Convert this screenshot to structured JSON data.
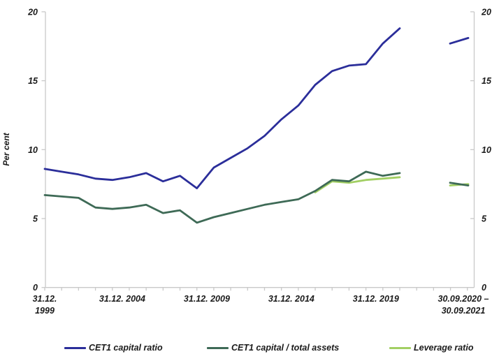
{
  "figure": {
    "ylabel": "Per cent",
    "background": "#ffffff",
    "axis_color": "#c9c9c9",
    "text_color": "#1a1a1a"
  },
  "chart_data": {
    "type": "line",
    "title": "",
    "xlabel": "",
    "ylabel": "Per cent",
    "ylim": [
      0,
      20
    ],
    "yticks": [
      0,
      5,
      10,
      15,
      20
    ],
    "grid": false,
    "legend_position": "bottom",
    "x_main": [
      "31.12.1999",
      "31.12.2000",
      "31.12.2001",
      "31.12.2002",
      "31.12.2003",
      "31.12.2004",
      "31.12.2005",
      "31.12.2006",
      "31.12.2007",
      "31.12.2008",
      "31.12.2009",
      "31.12.2010",
      "31.12.2011",
      "31.12.2012",
      "31.12.2013",
      "31.12.2014",
      "31.12.2015",
      "31.12.2016",
      "31.12.2017",
      "31.12.2018",
      "31.12.2019",
      "31.12.2020"
    ],
    "x_separate": [
      "30.09.2020",
      "30.09.2021"
    ],
    "x_tick_labels": [
      {
        "lines": [
          "31.12.",
          "1999"
        ],
        "pos": 0
      },
      {
        "lines": [
          "31.12. 2004"
        ],
        "pos": 5
      },
      {
        "lines": [
          "31.12. 2009"
        ],
        "pos": 10
      },
      {
        "lines": [
          "31.12. 2014"
        ],
        "pos": 15
      },
      {
        "lines": [
          "31.12. 2019"
        ],
        "pos": 20
      },
      {
        "lines": [
          "30.09.2020 –",
          "30.09.2021"
        ],
        "pos": "separate"
      }
    ],
    "series": [
      {
        "name": "CET1 capital ratio",
        "color": "#2b2e9a",
        "values_main": [
          8.6,
          8.4,
          8.2,
          7.9,
          7.8,
          8.0,
          8.3,
          7.7,
          8.1,
          7.2,
          8.7,
          9.4,
          10.1,
          11.0,
          12.2,
          13.2,
          14.7,
          15.7,
          16.1,
          16.2,
          17.7,
          18.8
        ],
        "values_separate": [
          17.7,
          18.1
        ]
      },
      {
        "name": "CET1 capital / total assets",
        "color": "#3e6a56",
        "values_main": [
          6.7,
          6.6,
          6.5,
          5.8,
          5.7,
          5.8,
          6.0,
          5.4,
          5.6,
          4.7,
          5.1,
          5.4,
          5.7,
          6.0,
          6.2,
          6.4,
          7.0,
          7.8,
          7.7,
          8.4,
          8.1,
          8.3
        ],
        "values_separate": [
          7.6,
          7.4
        ]
      },
      {
        "name": "Leverage ratio",
        "color": "#a2cf63",
        "values_main": [
          null,
          null,
          null,
          null,
          null,
          null,
          null,
          null,
          null,
          null,
          null,
          null,
          null,
          null,
          null,
          null,
          6.9,
          7.7,
          7.6,
          7.8,
          7.9,
          8.0
        ],
        "values_separate": [
          7.4,
          7.5
        ]
      }
    ]
  }
}
